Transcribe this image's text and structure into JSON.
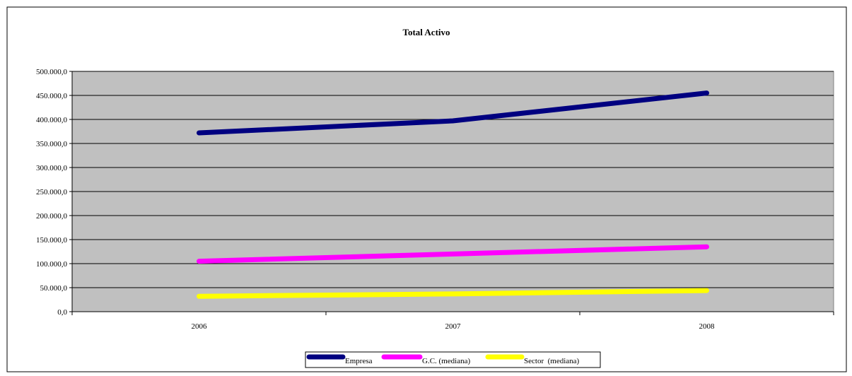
{
  "chart_data": {
    "type": "line",
    "title": "Total Activo",
    "categories": [
      "2006",
      "2007",
      "2008"
    ],
    "xlabel": "",
    "ylabel": "",
    "ylim": [
      0,
      500000
    ],
    "y_ticks": [
      "0,0",
      "50.000,0",
      "100.000,0",
      "150.000,0",
      "200.000,0",
      "250.000,0",
      "300.000,0",
      "350.000,0",
      "400.000,0",
      "450.000,0",
      "500.000,0"
    ],
    "grid": true,
    "legend_position": "bottom",
    "series": [
      {
        "name": "Empresa",
        "values": [
          372000,
          397000,
          455000
        ],
        "color": "#000080"
      },
      {
        "name": "G.C. (mediana)",
        "values": [
          105000,
          120000,
          135000
        ],
        "color": "#ff00ff"
      },
      {
        "name": "Sector  (mediana)",
        "values": [
          32000,
          37000,
          44000
        ],
        "color": "#ffff00"
      }
    ],
    "plot_background": "#c0c0c0"
  }
}
